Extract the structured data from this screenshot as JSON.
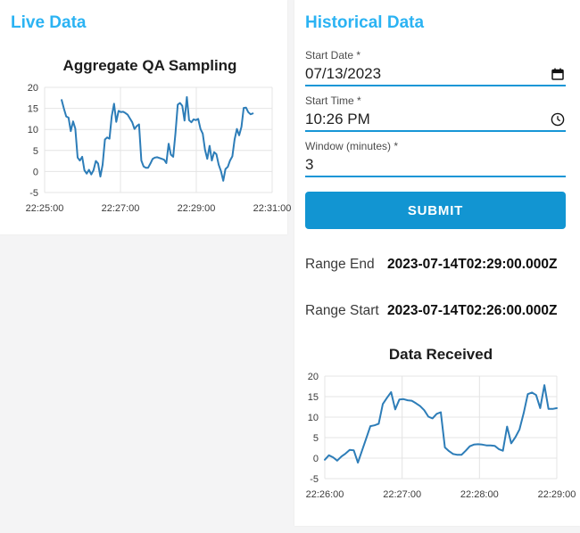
{
  "colors": {
    "header_blue": "#2bb3f3",
    "accent_blue": "#1295d2",
    "line_blue": "#2d7db8",
    "grid": "#e4e4e4",
    "tick": "#3b3b3b"
  },
  "live_panel": {
    "title": "Live Data"
  },
  "historical_panel": {
    "title": "Historical Data",
    "fields": [
      {
        "label": "Start Date *",
        "value": "07/13/2023",
        "icon": "calendar-icon"
      },
      {
        "label": "Start Time *",
        "value": "10:26 PM",
        "icon": "clock-icon"
      },
      {
        "label": "Window (minutes) *",
        "value": "3",
        "icon": "none"
      }
    ],
    "submit_label": "SUBMIT",
    "results": [
      {
        "label": "Range End",
        "value": "2023-07-14T02:29:00.000Z"
      },
      {
        "label": "Range Start",
        "value": "2023-07-14T02:26:00.000Z"
      }
    ]
  },
  "chart_data": [
    {
      "id": "aggregate-qa-sampling",
      "type": "line",
      "title": "Aggregate QA Sampling",
      "xlabel": "",
      "ylabel": "",
      "x_ticks": [
        "22:25:00",
        "22:27:00",
        "22:29:00",
        "22:31:00"
      ],
      "y_ticks": [
        -5,
        0,
        5,
        10,
        15,
        20
      ],
      "ylim": [
        -5,
        20
      ],
      "grid": true,
      "legend": false,
      "data_start_frac": 0.075,
      "data_end_frac": 0.915,
      "values": [
        17.0,
        14.9,
        13.1,
        12.8,
        9.6,
        11.9,
        10.2,
        3.3,
        2.6,
        3.5,
        0.3,
        -0.5,
        0.4,
        -0.7,
        0.3,
        2.5,
        1.9,
        -1.2,
        1.6,
        7.6,
        8.1,
        7.8,
        13.1,
        16.1,
        11.8,
        14.4,
        14.1,
        14.2,
        13.9,
        13.5,
        12.6,
        11.7,
        10.1,
        10.8,
        11.2,
        2.6,
        1.2,
        0.9,
        0.9,
        1.9,
        3.0,
        3.3,
        3.4,
        3.2,
        3.0,
        2.8,
        2.0,
        6.6,
        4.0,
        3.5,
        9.0,
        15.9,
        16.3,
        15.6,
        12.1,
        17.7,
        12.2,
        11.7,
        12.4,
        12.2,
        12.5,
        10.1,
        9.0,
        5.1,
        3.0,
        6.1,
        2.6,
        4.6,
        4.1,
        1.6,
        0.1,
        -2.2,
        0.6,
        1.1,
        2.6,
        3.6,
        7.6,
        10.1,
        8.6,
        10.6,
        15.1,
        15.2,
        14.1,
        13.6,
        13.8
      ]
    },
    {
      "id": "data-received",
      "type": "line",
      "title": "Data Received",
      "xlabel": "",
      "ylabel": "",
      "x_ticks": [
        "22:26:00",
        "22:27:00",
        "22:28:00",
        "22:29:00"
      ],
      "y_ticks": [
        -5,
        0,
        5,
        10,
        15,
        20
      ],
      "ylim": [
        -5,
        20
      ],
      "grid": true,
      "legend": false,
      "data_start_frac": 0.0,
      "data_end_frac": 1.0,
      "values": [
        -0.4,
        0.7,
        0.2,
        -0.6,
        0.4,
        1.1,
        2.0,
        1.9,
        -1.1,
        1.9,
        4.8,
        7.8,
        8.0,
        8.4,
        13.2,
        14.7,
        16.1,
        11.9,
        14.3,
        14.4,
        14.1,
        14.0,
        13.4,
        12.7,
        11.7,
        10.1,
        9.7,
        10.8,
        11.2,
        2.6,
        1.7,
        1.0,
        0.8,
        0.8,
        1.8,
        2.9,
        3.3,
        3.4,
        3.3,
        3.1,
        3.1,
        3.0,
        2.2,
        1.8,
        7.7,
        3.6,
        5.1,
        7.0,
        11.0,
        15.6,
        16.0,
        15.4,
        12.2,
        17.8,
        12.0,
        12.0,
        12.2
      ]
    }
  ]
}
